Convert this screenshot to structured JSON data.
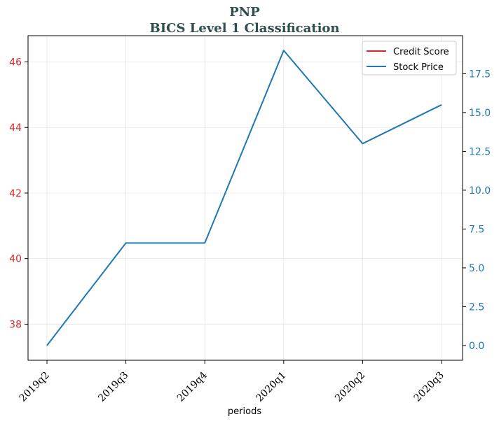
{
  "chart_data": {
    "type": "line",
    "title": "PNP",
    "subtitle": "BICS Level 1 Classification",
    "xlabel": "periods",
    "categories": [
      "2019q2",
      "2019q3",
      "2019q4",
      "2020q1",
      "2020q2",
      "2020q3"
    ],
    "y_left": {
      "ylim": [
        36.9,
        46.8
      ],
      "ticks": [
        38,
        40,
        42,
        44,
        46
      ],
      "color": "#d62728"
    },
    "y_right": {
      "ylim": [
        -0.95,
        19.95
      ],
      "ticks": [
        "0.0",
        "2.5",
        "5.0",
        "7.5",
        "10.0",
        "12.5",
        "15.0",
        "17.5"
      ],
      "color": "#1f77b4"
    },
    "series": [
      {
        "name": "Credit Score",
        "axis": "left",
        "color": "#d62728",
        "values": [
          null,
          null,
          null,
          null,
          null,
          null
        ]
      },
      {
        "name": "Stock Price",
        "axis": "right",
        "color": "#1f77b4",
        "values": [
          0.0,
          6.6,
          6.6,
          19.0,
          13.0,
          15.5
        ]
      }
    ],
    "legend_position": "top-right",
    "grid": true
  }
}
